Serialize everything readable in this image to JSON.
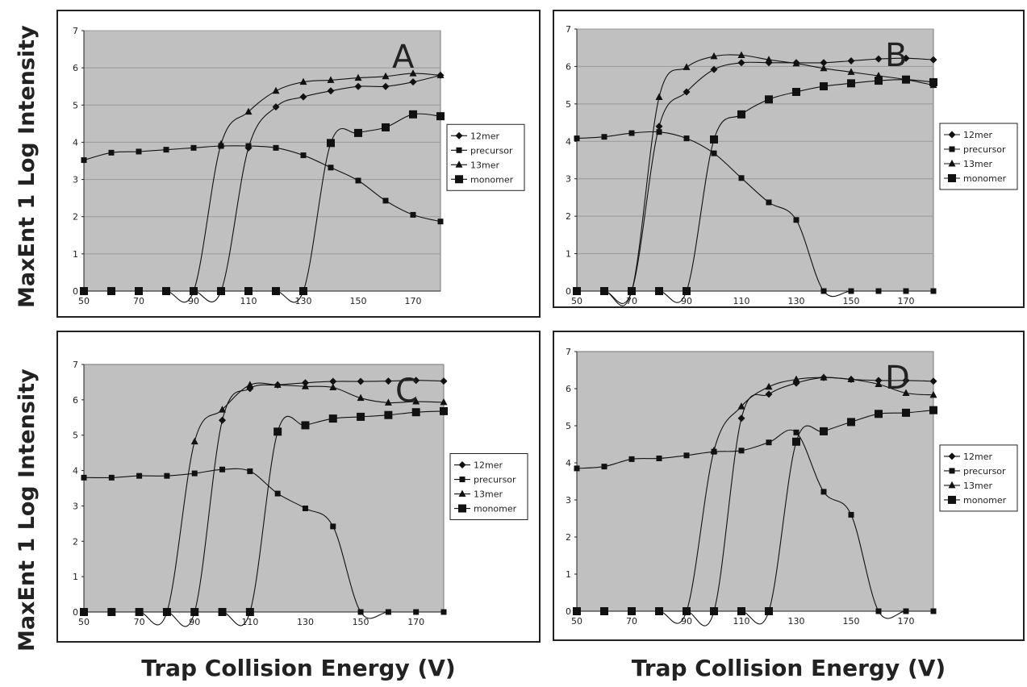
{
  "ylabel": "MaxEnt 1 Log Intensity",
  "xlabel": "Trap Collision Energy (V)",
  "legend": [
    "12mer",
    "precursor",
    "13mer",
    "monomer"
  ],
  "colors": {
    "plot_bg": "#c0c0c0",
    "line": "#111111",
    "grid": "#999999"
  },
  "chart_data": [
    {
      "type": "line",
      "title": "A",
      "x": [
        50,
        60,
        70,
        80,
        90,
        100,
        110,
        120,
        130,
        140,
        150,
        160,
        170,
        180
      ],
      "xticks": [
        50,
        70,
        90,
        110,
        130,
        150,
        170
      ],
      "ylim": [
        0,
        7
      ],
      "xlim": [
        50,
        180
      ],
      "grid": true,
      "legend_position": "right",
      "series": [
        {
          "name": "12mer",
          "marker": "diamond",
          "values": [
            0,
            0,
            0,
            0,
            0,
            0,
            3.85,
            4.95,
            5.22,
            5.38,
            5.5,
            5.5,
            5.62,
            5.8
          ]
        },
        {
          "name": "precursor",
          "marker": "square",
          "values": [
            3.52,
            3.72,
            3.75,
            3.8,
            3.85,
            3.9,
            3.9,
            3.85,
            3.65,
            3.32,
            2.97,
            2.43,
            2.05,
            1.87
          ]
        },
        {
          "name": "13mer",
          "marker": "triangle",
          "values": [
            0,
            0,
            0,
            0,
            0,
            3.95,
            4.82,
            5.38,
            5.62,
            5.67,
            5.73,
            5.77,
            5.85,
            5.8
          ]
        },
        {
          "name": "monomer",
          "marker": "bigsquare",
          "values": [
            0,
            0,
            0,
            0,
            0,
            0,
            0,
            0,
            0,
            3.98,
            4.25,
            4.4,
            4.75,
            4.7
          ]
        }
      ]
    },
    {
      "type": "line",
      "title": "B",
      "x": [
        50,
        60,
        70,
        80,
        90,
        100,
        110,
        120,
        130,
        140,
        150,
        160,
        170,
        180
      ],
      "xticks": [
        50,
        70,
        90,
        110,
        130,
        150,
        170
      ],
      "ylim": [
        0,
        7
      ],
      "xlim": [
        50,
        180
      ],
      "grid": true,
      "legend_position": "right",
      "series": [
        {
          "name": "12mer",
          "marker": "diamond",
          "values": [
            0,
            0,
            0,
            4.4,
            5.32,
            5.92,
            6.1,
            6.1,
            6.1,
            6.1,
            6.15,
            6.2,
            6.22,
            6.18
          ]
        },
        {
          "name": "precursor",
          "marker": "square",
          "values": [
            4.08,
            4.12,
            4.22,
            4.25,
            4.08,
            3.68,
            3.02,
            2.37,
            1.9,
            0,
            0,
            0,
            0,
            0
          ]
        },
        {
          "name": "13mer",
          "marker": "triangle",
          "values": [
            0,
            0,
            0,
            5.18,
            5.98,
            6.27,
            6.3,
            6.18,
            6.08,
            5.95,
            5.85,
            5.75,
            5.65,
            5.5
          ]
        },
        {
          "name": "monomer",
          "marker": "bigsquare",
          "values": [
            0,
            0,
            0,
            0,
            0,
            4.05,
            4.72,
            5.12,
            5.32,
            5.47,
            5.55,
            5.62,
            5.65,
            5.58
          ]
        }
      ]
    },
    {
      "type": "line",
      "title": "C",
      "x": [
        50,
        60,
        70,
        80,
        90,
        100,
        110,
        120,
        130,
        140,
        150,
        160,
        170,
        180
      ],
      "xticks": [
        50,
        70,
        90,
        110,
        130,
        150,
        170
      ],
      "ylim": [
        0,
        7
      ],
      "xlim": [
        50,
        180
      ],
      "grid": false,
      "legend_position": "right",
      "series": [
        {
          "name": "12mer",
          "marker": "diamond",
          "values": [
            0,
            0,
            0,
            0,
            0,
            5.42,
            6.32,
            6.42,
            6.48,
            6.52,
            6.52,
            6.53,
            6.55,
            6.53
          ]
        },
        {
          "name": "precursor",
          "marker": "square",
          "values": [
            3.8,
            3.8,
            3.85,
            3.85,
            3.92,
            4.03,
            3.98,
            3.35,
            2.93,
            2.42,
            0,
            0,
            0,
            0
          ]
        },
        {
          "name": "13mer",
          "marker": "triangle",
          "values": [
            0,
            0,
            0,
            0,
            4.82,
            5.72,
            6.42,
            6.42,
            6.38,
            6.35,
            6.05,
            5.92,
            5.95,
            5.93
          ]
        },
        {
          "name": "monomer",
          "marker": "bigsquare",
          "values": [
            0,
            0,
            0,
            0,
            0,
            0,
            0,
            5.1,
            5.28,
            5.47,
            5.52,
            5.57,
            5.65,
            5.68
          ]
        }
      ]
    },
    {
      "type": "line",
      "title": "D",
      "x": [
        50,
        60,
        70,
        80,
        90,
        100,
        110,
        120,
        130,
        140,
        150,
        160,
        170,
        180
      ],
      "xticks": [
        50,
        70,
        90,
        110,
        130,
        150,
        170
      ],
      "ylim": [
        0,
        7
      ],
      "xlim": [
        50,
        180
      ],
      "grid": false,
      "legend_position": "right",
      "series": [
        {
          "name": "12mer",
          "marker": "diamond",
          "values": [
            0,
            0,
            0,
            0,
            0,
            0,
            5.2,
            5.85,
            6.15,
            6.3,
            6.25,
            6.22,
            6.22,
            6.2
          ]
        },
        {
          "name": "precursor",
          "marker": "square",
          "values": [
            3.85,
            3.9,
            4.1,
            4.12,
            4.2,
            4.3,
            4.33,
            4.55,
            4.82,
            3.22,
            2.6,
            0,
            0,
            0
          ]
        },
        {
          "name": "13mer",
          "marker": "triangle",
          "values": [
            0,
            0,
            0,
            0,
            0,
            4.33,
            5.52,
            6.05,
            6.25,
            6.3,
            6.25,
            6.12,
            5.88,
            5.83
          ]
        },
        {
          "name": "monomer",
          "marker": "bigsquare",
          "values": [
            0,
            0,
            0,
            0,
            0,
            0,
            0,
            0,
            4.57,
            4.85,
            5.1,
            5.32,
            5.35,
            5.42
          ]
        }
      ]
    }
  ]
}
